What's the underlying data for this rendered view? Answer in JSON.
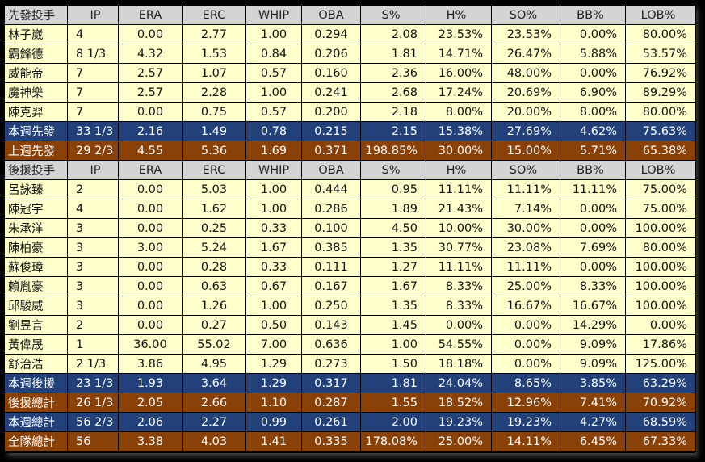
{
  "columns": [
    "先發投手",
    "IP",
    "ERA",
    "ERC",
    "WHIP",
    "OBA",
    "S%",
    "H%",
    "SO%",
    "BB%",
    "LOB%"
  ],
  "columns2": [
    "後援投手",
    "IP",
    "ERA",
    "ERC",
    "WHIP",
    "OBA",
    "S%",
    "H%",
    "SO%",
    "BB%",
    "LOB%"
  ],
  "starters": [
    [
      "林子崴",
      "4",
      "0.00",
      "2.77",
      "1.00",
      "0.294",
      "2.08",
      "23.53%",
      "23.53%",
      "0.00%",
      "80.00%"
    ],
    [
      "霸鋒德",
      "8 1/3",
      "4.32",
      "1.53",
      "0.84",
      "0.206",
      "1.81",
      "14.71%",
      "26.47%",
      "5.88%",
      "53.57%"
    ],
    [
      "威能帝",
      "7",
      "2.57",
      "1.07",
      "0.57",
      "0.160",
      "2.36",
      "16.00%",
      "48.00%",
      "0.00%",
      "76.92%"
    ],
    [
      "魔神樂",
      "7",
      "2.57",
      "2.28",
      "1.00",
      "0.241",
      "2.68",
      "17.24%",
      "20.69%",
      "6.90%",
      "89.29%"
    ],
    [
      "陳克羿",
      "7",
      "0.00",
      "0.75",
      "0.57",
      "0.200",
      "2.18",
      "8.00%",
      "20.00%",
      "8.00%",
      "80.00%"
    ]
  ],
  "starter_totals": [
    {
      "style": "blue",
      "cells": [
        "本週先發",
        "33 1/3",
        "2.16",
        "1.49",
        "0.78",
        "0.215",
        "2.15",
        "15.38%",
        "27.69%",
        "4.62%",
        "75.63%"
      ]
    },
    {
      "style": "brown",
      "cells": [
        "上週先發",
        "29 2/3",
        "4.55",
        "5.36",
        "1.69",
        "0.371",
        "198.85%",
        "30.00%",
        "15.00%",
        "5.71%",
        "65.38%"
      ]
    }
  ],
  "relievers": [
    [
      "呂詠臻",
      "2",
      "0.00",
      "5.03",
      "1.00",
      "0.444",
      "0.95",
      "11.11%",
      "11.11%",
      "11.11%",
      "75.00%"
    ],
    [
      "陳冠宇",
      "4",
      "0.00",
      "1.62",
      "1.00",
      "0.286",
      "1.89",
      "21.43%",
      "7.14%",
      "0.00%",
      "75.00%"
    ],
    [
      "朱承洋",
      "3",
      "0.00",
      "0.25",
      "0.33",
      "0.100",
      "4.50",
      "10.00%",
      "30.00%",
      "0.00%",
      "100.00%"
    ],
    [
      "陳柏豪",
      "3",
      "3.00",
      "5.24",
      "1.67",
      "0.385",
      "1.35",
      "30.77%",
      "23.08%",
      "7.69%",
      "80.00%"
    ],
    [
      "蘇俊璋",
      "3",
      "0.00",
      "0.28",
      "0.33",
      "0.111",
      "1.27",
      "11.11%",
      "11.11%",
      "0.00%",
      "100.00%"
    ],
    [
      "賴胤豪",
      "3",
      "0.00",
      "0.63",
      "0.67",
      "0.167",
      "1.67",
      "8.33%",
      "25.00%",
      "8.33%",
      "100.00%"
    ],
    [
      "邱駿威",
      "3",
      "0.00",
      "1.26",
      "1.00",
      "0.250",
      "1.35",
      "8.33%",
      "16.67%",
      "16.67%",
      "100.00%"
    ],
    [
      "劉昱言",
      "2",
      "0.00",
      "0.27",
      "0.50",
      "0.143",
      "1.45",
      "0.00%",
      "0.00%",
      "14.29%",
      "0.00%"
    ],
    [
      "黃偉晟",
      "1",
      "36.00",
      "55.02",
      "7.00",
      "0.636",
      "1.00",
      "54.55%",
      "0.00%",
      "9.09%",
      "17.86%"
    ],
    [
      "舒治浩",
      "2 1/3",
      "3.86",
      "4.95",
      "1.29",
      "0.273",
      "1.50",
      "18.18%",
      "0.00%",
      "9.09%",
      "125.00%"
    ]
  ],
  "reliever_totals": [
    {
      "style": "blue",
      "cells": [
        "本週後援",
        "23 1/3",
        "1.93",
        "3.64",
        "1.29",
        "0.317",
        "1.81",
        "24.04%",
        "8.65%",
        "3.85%",
        "63.29%"
      ]
    },
    {
      "style": "brown",
      "cells": [
        "後援總計",
        "26 1/3",
        "2.05",
        "2.66",
        "1.10",
        "0.287",
        "1.55",
        "18.52%",
        "12.96%",
        "7.41%",
        "70.92%"
      ]
    },
    {
      "style": "blue",
      "cells": [
        "本週總計",
        "56 2/3",
        "2.06",
        "2.27",
        "0.99",
        "0.261",
        "2.00",
        "19.23%",
        "19.23%",
        "4.27%",
        "68.59%"
      ]
    },
    {
      "style": "brown",
      "cells": [
        "全隊總計",
        "56",
        "3.38",
        "4.03",
        "1.41",
        "0.335",
        "178.08%",
        "25.00%",
        "14.11%",
        "6.45%",
        "67.33%"
      ]
    }
  ],
  "colors": {
    "header": "#d4d4d4",
    "row": "#ffffcc",
    "blue": "#22417a",
    "brown": "#8a4108"
  }
}
